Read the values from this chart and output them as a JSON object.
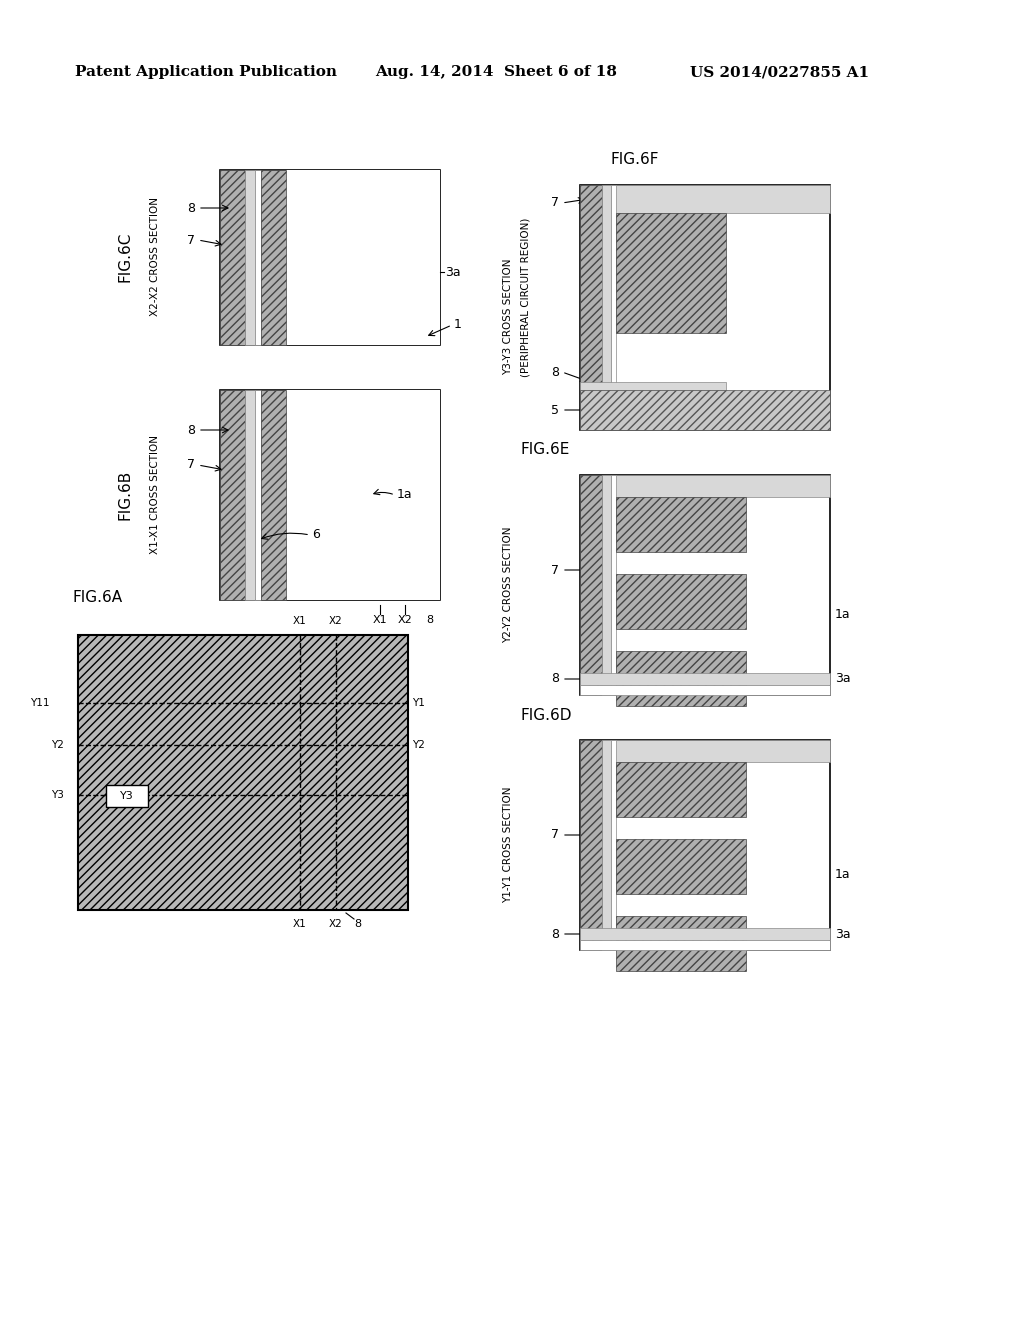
{
  "bg_color": "#ffffff",
  "header_left": "Patent Application Publication",
  "header_mid": "Aug. 14, 2014  Sheet 6 of 18",
  "header_right": "US 2014/0227855 A1",
  "dark_hatch": "////",
  "light_hatch": "....",
  "gray_face": "#b0b0b0",
  "light_gray_face": "#d8d8d8",
  "white": "#ffffff",
  "black": "#000000"
}
